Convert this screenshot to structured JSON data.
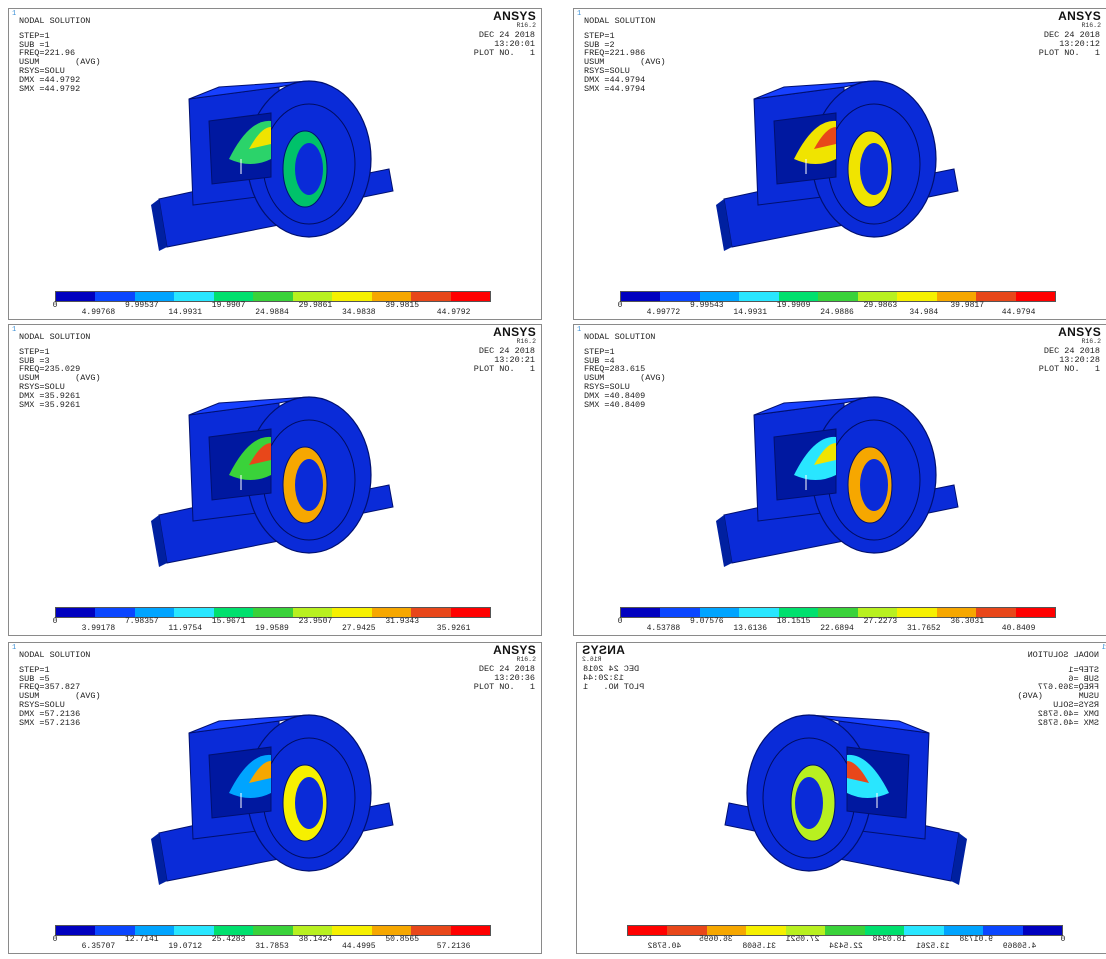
{
  "legend_colors": [
    "#0000bf",
    "#0a46ff",
    "#00a4ff",
    "#29e6ff",
    "#00e06e",
    "#3ad23a",
    "#b8f020",
    "#f6f000",
    "#f6a700",
    "#e8471a",
    "#ff0000"
  ],
  "panels": [
    {
      "corner": "1",
      "title": "NODAL SOLUTION",
      "step": "STEP=1",
      "sub": "SUB =1",
      "freq": "FREQ=221.96",
      "usum": "USUM       (AVG)",
      "rsys": "RSYS=SOLU",
      "dmx": "DMX =44.9792",
      "smx": "SMX =44.9792",
      "brand": "ANSYS",
      "release": "R16.2",
      "date": "DEC 24 2018",
      "time": "13:20:01",
      "plot": "PLOT NO.   1",
      "legend_top": [
        "0",
        "9.99537",
        "19.9907",
        "29.9861",
        "39.9815"
      ],
      "legend_bottom": [
        "4.99768",
        "14.9931",
        "24.9884",
        "34.9838",
        "44.9792"
      ]
    },
    {
      "corner": "1",
      "title": "NODAL SOLUTION",
      "step": "STEP=1",
      "sub": "SUB =2",
      "freq": "FREQ=221.986",
      "usum": "USUM       (AVG)",
      "rsys": "RSYS=SOLU",
      "dmx": "DMX =44.9794",
      "smx": "SMX =44.9794",
      "brand": "ANSYS",
      "release": "R16.2",
      "date": "DEC 24 2018",
      "time": "13:20:12",
      "plot": "PLOT NO.   1",
      "legend_top": [
        "0",
        "9.99543",
        "19.9909",
        "29.9863",
        "39.9817"
      ],
      "legend_bottom": [
        "4.99772",
        "14.9931",
        "24.9886",
        "34.984",
        "44.9794"
      ]
    },
    {
      "corner": "1",
      "title": "NODAL SOLUTION",
      "step": "STEP=1",
      "sub": "SUB =3",
      "freq": "FREQ=235.029",
      "usum": "USUM       (AVG)",
      "rsys": "RSYS=SOLU",
      "dmx": "DMX =35.9261",
      "smx": "SMX =35.9261",
      "brand": "ANSYS",
      "release": "R16.2",
      "date": "DEC 24 2018",
      "time": "13:20:21",
      "plot": "PLOT NO.   1",
      "legend_top": [
        "0",
        "7.98357",
        "15.9671",
        "23.9507",
        "31.9343"
      ],
      "legend_bottom": [
        "3.99178",
        "11.9754",
        "19.9589",
        "27.9425",
        "35.9261"
      ]
    },
    {
      "corner": "1",
      "title": "NODAL SOLUTION",
      "step": "STEP=1",
      "sub": "SUB =4",
      "freq": "FREQ=283.615",
      "usum": "USUM       (AVG)",
      "rsys": "RSYS=SOLU",
      "dmx": "DMX =40.8409",
      "smx": "SMX =40.8409",
      "brand": "ANSYS",
      "release": "R16.2",
      "date": "DEC 24 2018",
      "time": "13:20:28",
      "plot": "PLOT NO.   1",
      "legend_top": [
        "0",
        "9.07576",
        "18.1515",
        "27.2273",
        "36.3031"
      ],
      "legend_bottom": [
        "4.53788",
        "13.6136",
        "22.6894",
        "31.7652",
        "40.8409"
      ]
    },
    {
      "corner": "1",
      "title": "NODAL SOLUTION",
      "step": "STEP=1",
      "sub": "SUB =5",
      "freq": "FREQ=357.827",
      "usum": "USUM       (AVG)",
      "rsys": "RSYS=SOLU",
      "dmx": "DMX =57.2136",
      "smx": "SMX =57.2136",
      "brand": "ANSYS",
      "release": "R16.2",
      "date": "DEC 24 2018",
      "time": "13:20:36",
      "plot": "PLOT NO.   1",
      "legend_top": [
        "0",
        "12.7141",
        "25.4283",
        "38.1424",
        "50.8565"
      ],
      "legend_bottom": [
        "6.35707",
        "19.0712",
        "31.7853",
        "44.4995",
        "57.2136"
      ]
    },
    {
      "corner": "1",
      "title": "NODAL SOLUTION",
      "step": "STEP=1",
      "sub": "SUB =6",
      "freq": "FREQ=369.677",
      "usum": "USUM       (AVG)",
      "rsys": "RSYS=SOLU",
      "dmx": "DMX =40.5782",
      "smx": "SMX =40.5782",
      "brand": "ANSYS",
      "release": "R16.2",
      "date": "DEC 24 2018",
      "time": "13:20:44",
      "plot": "PLOT NO.   1",
      "legend_top": [
        "0",
        "9.01738",
        "18.0348",
        "27.0521",
        "36.0695"
      ],
      "legend_bottom": [
        "4.50869",
        "13.5261",
        "22.5434",
        "31.5608",
        "40.5782"
      ]
    }
  ]
}
